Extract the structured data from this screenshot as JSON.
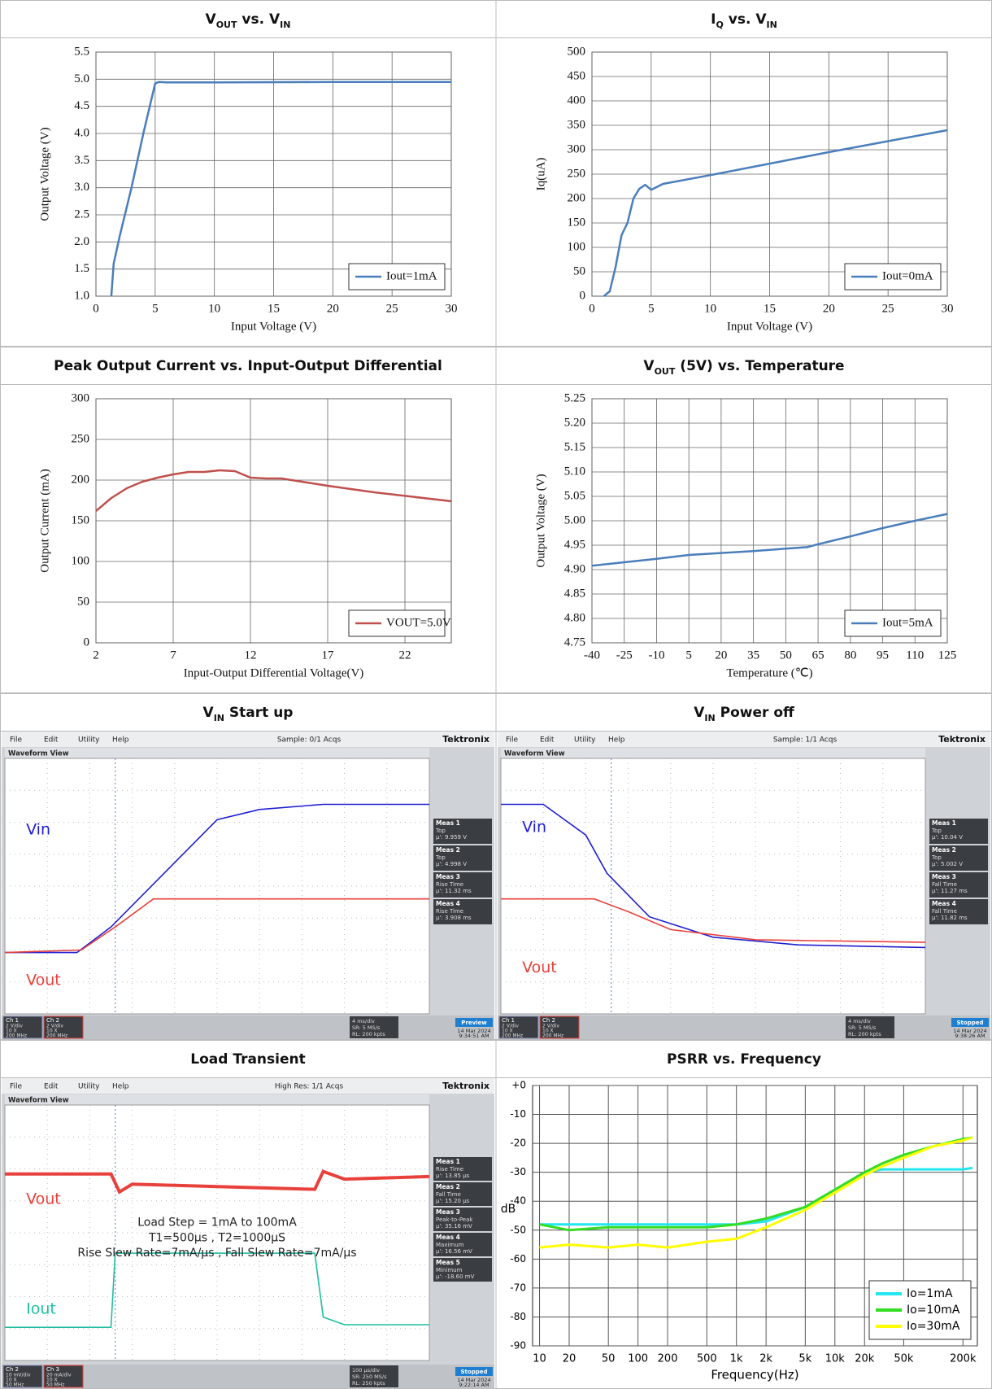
{
  "chart_data": [
    {
      "type": "line",
      "title": [
        {
          "text": "V"
        },
        {
          "text": "OUT",
          "sub": true
        },
        {
          "text": " vs. V"
        },
        {
          "text": "IN",
          "sub": true
        }
      ],
      "x": [
        1.3,
        1.5,
        2,
        3,
        4,
        5,
        5.3,
        6,
        10,
        20,
        30
      ],
      "series": [
        {
          "name": "Iout=1mA",
          "color": "#4a7ebb",
          "values": [
            1.0,
            1.6,
            2.1,
            3.0,
            4.0,
            4.92,
            4.95,
            4.94,
            4.94,
            4.95,
            4.95
          ]
        }
      ],
      "xlim": [
        0,
        30
      ],
      "xticks": [
        0,
        5,
        10,
        15,
        20,
        25,
        30
      ],
      "ylim": [
        1,
        5.5
      ],
      "yticks": [
        {
          "value": 1,
          "label": "1.0"
        },
        1.5,
        {
          "value": 2,
          "label": "2.0"
        },
        2.5,
        {
          "value": 3,
          "label": "3.0"
        },
        3.5,
        {
          "value": 4,
          "label": "4.0"
        },
        4.5,
        {
          "value": 5,
          "label": "5.0"
        },
        5.5
      ],
      "xlabel": "Input Voltage (V)",
      "ylabel": "Output Voltage (V)",
      "grid": true,
      "legend": "lower right"
    },
    {
      "type": "line",
      "title": [
        {
          "text": "I"
        },
        {
          "text": "Q",
          "sub": true
        },
        {
          "text": " vs. V"
        },
        {
          "text": "IN",
          "sub": true
        }
      ],
      "x": [
        1,
        1.5,
        2,
        2.5,
        3,
        3.5,
        4,
        4.5,
        5,
        6,
        10,
        20,
        30
      ],
      "series": [
        {
          "name": "Iout=0mA",
          "color": "#4a7ebb",
          "values": [
            0,
            10,
            60,
            125,
            150,
            200,
            220,
            228,
            218,
            230,
            248,
            295,
            340
          ]
        }
      ],
      "xlim": [
        0,
        30
      ],
      "xticks": [
        0,
        5,
        10,
        15,
        20,
        25,
        30
      ],
      "ylim": [
        0,
        500
      ],
      "yticks": [
        0,
        50,
        100,
        150,
        200,
        250,
        300,
        350,
        400,
        450,
        500
      ],
      "xlabel": "Input Voltage (V)",
      "ylabel": "Iq(uA)",
      "grid": true,
      "legend": "lower right"
    },
    {
      "type": "line",
      "title": [
        {
          "text": "Peak Output Current vs. Input-Output Differential"
        }
      ],
      "x": [
        2,
        3,
        4,
        5,
        6,
        7,
        8,
        9,
        10,
        11,
        12,
        13,
        14,
        17,
        20,
        25
      ],
      "series": [
        {
          "name": "VOUT=5.0V",
          "color": "#c0504d",
          "values": [
            162,
            178,
            190,
            198,
            203,
            207,
            210,
            210,
            212,
            211,
            203,
            202,
            202,
            193,
            185,
            174
          ]
        }
      ],
      "xlim": [
        2,
        25
      ],
      "xticks": [
        2,
        7,
        12,
        17,
        22
      ],
      "ylim": [
        0,
        300
      ],
      "yticks": [
        0,
        50,
        100,
        150,
        200,
        250,
        300
      ],
      "xlabel": "Input-Output Differential Voltage(V)",
      "ylabel": "Output Current (mA)",
      "grid": true,
      "legend": "lower right"
    },
    {
      "type": "line",
      "title": [
        {
          "text": "V"
        },
        {
          "text": "OUT",
          "sub": true
        },
        {
          "text": " (5V) vs. Temperature"
        }
      ],
      "x": [
        -40,
        -25,
        -10,
        5,
        20,
        35,
        50,
        60,
        65,
        80,
        95,
        110,
        125
      ],
      "series": [
        {
          "name": "Iout=5mA",
          "color": "#4a7ebb",
          "values": [
            4.908,
            4.915,
            4.922,
            4.93,
            4.934,
            4.938,
            4.943,
            4.946,
            4.952,
            4.968,
            4.985,
            5.0,
            5.014
          ]
        }
      ],
      "xlim": [
        -40,
        125
      ],
      "xticks": [
        -40,
        -25,
        -10,
        5,
        20,
        35,
        50,
        65,
        80,
        95,
        110,
        125
      ],
      "ylim": [
        4.75,
        5.25
      ],
      "yticks": [
        4.75,
        {
          "value": 4.8,
          "label": "4.80"
        },
        4.85,
        {
          "value": 4.9,
          "label": "4.90"
        },
        4.95,
        {
          "value": 5,
          "label": "5.00"
        },
        5.05,
        {
          "value": 5.1,
          "label": "5.10"
        },
        5.15,
        {
          "value": 5.2,
          "label": "5.20"
        },
        5.25
      ],
      "xlabel": "Temperature (℃)",
      "ylabel": "Output Voltage (V)",
      "grid": true,
      "legend": "lower right"
    },
    {
      "type": "line",
      "title": [
        {
          "text": "PSRR vs. Frequency"
        }
      ],
      "xscale": "log",
      "x": [
        10,
        20,
        50,
        100,
        200,
        500,
        1000,
        2000,
        5000,
        10000,
        20000,
        30000,
        50000,
        100000,
        200000,
        250000
      ],
      "series": [
        {
          "name": "Io=1mA",
          "color": "#22e6f0",
          "values": [
            -48,
            -48,
            -48,
            -48,
            -48,
            -48,
            -48,
            -47,
            -42,
            -36,
            -30,
            -29,
            -29,
            -29,
            -29,
            -28.5
          ]
        },
        {
          "name": "Io=10mA",
          "color": "#33dd22",
          "values": [
            -48,
            -50,
            -49,
            -49,
            -49,
            -49,
            -48,
            -46,
            -42,
            -36,
            -30,
            -27,
            -24,
            -21,
            -18.5,
            -18
          ]
        },
        {
          "name": "Io=30mA",
          "color": "#ffff00",
          "values": [
            -56,
            -55,
            -56,
            -55,
            -56,
            -54,
            -53,
            -49,
            -43,
            -37,
            -31,
            -28,
            -25,
            -21,
            -19,
            -18
          ]
        }
      ],
      "xlim": [
        8.5,
        280000
      ],
      "xticks": [
        10,
        20,
        50,
        100,
        200,
        500,
        {
          "value": 1000,
          "label": "1k"
        },
        {
          "value": 2000,
          "label": "2k"
        },
        {
          "value": 5000,
          "label": "5k"
        },
        {
          "value": 10000,
          "label": "10k"
        },
        {
          "value": 20000,
          "label": "20k"
        },
        {
          "value": 50000,
          "label": "50k"
        },
        {
          "value": 200000,
          "label": "200k"
        }
      ],
      "ylim": [
        -90,
        0
      ],
      "yticks": [
        {
          "value": 0,
          "label": "+0"
        },
        -10,
        -20,
        -30,
        -40,
        -50,
        -60,
        -70,
        -80,
        -90
      ],
      "xlabel": "Frequency(Hz)",
      "ylabel": "dB",
      "grid": true,
      "legend": "lower right"
    }
  ],
  "scope_shots": [
    {
      "title": [
        {
          "text": "V"
        },
        {
          "text": "IN",
          "sub": true
        },
        {
          "text": " Start up"
        }
      ],
      "menu": [
        "File",
        "Edit",
        "Utility",
        "Help"
      ],
      "status": "Sample: 0/1 Acqs",
      "brand": "Tektronix",
      "view": "Waveform View",
      "labels": [
        {
          "text": "Vin",
          "color": "#1e1ed2"
        },
        {
          "text": "Vout",
          "color": "#e8413c"
        }
      ],
      "meas": [
        {
          "name": "Meas 1",
          "kind": "Top",
          "value": "μ': 9.959 V"
        },
        {
          "name": "Meas 2",
          "kind": "Top",
          "value": "μ': 4.998 V"
        },
        {
          "name": "Meas 3",
          "kind": "Rise Time",
          "value": "μ': 11.32 ms"
        },
        {
          "name": "Meas 4",
          "kind": "Rise Time",
          "value": "μ': 3.908 ms"
        }
      ],
      "channels": [
        {
          "name": "Ch 1",
          "settings": [
            "2 V/div",
            "10 X",
            "200 MHz"
          ]
        },
        {
          "name": "Ch 2",
          "settings": [
            "2 V/div",
            "10 X",
            "200 MHz"
          ]
        }
      ],
      "horizontal": [
        "4 ms/div",
        "SR: 5 MS/s",
        "RL: 200 kpts"
      ],
      "mode": "Preview",
      "date": "14 Mar 2024",
      "time": "9:34:51 AM"
    },
    {
      "title": [
        {
          "text": "V"
        },
        {
          "text": "IN",
          "sub": true
        },
        {
          "text": " Power off"
        }
      ],
      "menu": [
        "File",
        "Edit",
        "Utility",
        "Help"
      ],
      "status": "Sample: 1/1 Acqs",
      "brand": "Tektronix",
      "view": "Waveform View",
      "labels": [
        {
          "text": "Vin",
          "color": "#1e1ed2"
        },
        {
          "text": "Vout",
          "color": "#e8413c"
        }
      ],
      "meas": [
        {
          "name": "Meas 1",
          "kind": "Top",
          "value": "μ': 10.04 V"
        },
        {
          "name": "Meas 2",
          "kind": "Top",
          "value": "μ': 5.002 V"
        },
        {
          "name": "Meas 3",
          "kind": "Fall Time",
          "value": "μ': 11.27 ms"
        },
        {
          "name": "Meas 4",
          "kind": "Fall Time",
          "value": "μ': 11.82 ms"
        }
      ],
      "channels": [
        {
          "name": "Ch 1",
          "settings": [
            "2 V/div",
            "10 X",
            "200 MHz"
          ]
        },
        {
          "name": "Ch 2",
          "settings": [
            "2 V/div",
            "10 X",
            "200 MHz"
          ]
        }
      ],
      "horizontal": [
        "4 ms/div",
        "SR: 5 MS/s",
        "RL: 200 kpts"
      ],
      "mode": "Stopped",
      "date": "14 Mar 2024",
      "time": "9:38:26 AM"
    },
    {
      "title": [
        {
          "text": "Load Transient"
        }
      ],
      "menu": [
        "File",
        "Edit",
        "Utility",
        "Help"
      ],
      "status": "High Res: 1/1 Acqs",
      "brand": "Tektronix",
      "view": "Waveform View",
      "labels": [
        {
          "text": "Vout",
          "color": "#e8413c"
        },
        {
          "text": "Iout",
          "color": "#1fbf9f"
        }
      ],
      "annotations": [
        "Load Step = 1mA to 100mA",
        "T1=500μs , T2=1000μS",
        "Rise Slew Rate=7mA/μs , Fall Slew Rate=7mA/μs"
      ],
      "meas": [
        {
          "name": "Meas 1",
          "kind": "Rise Time",
          "value": "μ': 13.85 μs"
        },
        {
          "name": "Meas 2",
          "kind": "Fall Time",
          "value": "μ': 15.20 μs"
        },
        {
          "name": "Meas 3",
          "kind": "Peak-to-Peak",
          "value": "μ': 35.16 mV"
        },
        {
          "name": "Meas 4",
          "kind": "Maximum",
          "value": "μ': 16.56 mV"
        },
        {
          "name": "Meas 5",
          "kind": "Minimum",
          "value": "μ': -18.60 mV"
        }
      ],
      "channels": [
        {
          "name": "Ch 2",
          "settings": [
            "10 mV/div",
            "10 X",
            "50 MHz"
          ]
        },
        {
          "name": "Ch 3",
          "settings": [
            "20 mA/div",
            "10 X",
            "50 MHz"
          ]
        }
      ],
      "horizontal": [
        "100 μs/div",
        "SR: 250 MS/s",
        "RL: 250 kpts"
      ],
      "mode": "Stopped",
      "date": "14 Mar 2024",
      "time": "9:22:14 AM"
    }
  ]
}
